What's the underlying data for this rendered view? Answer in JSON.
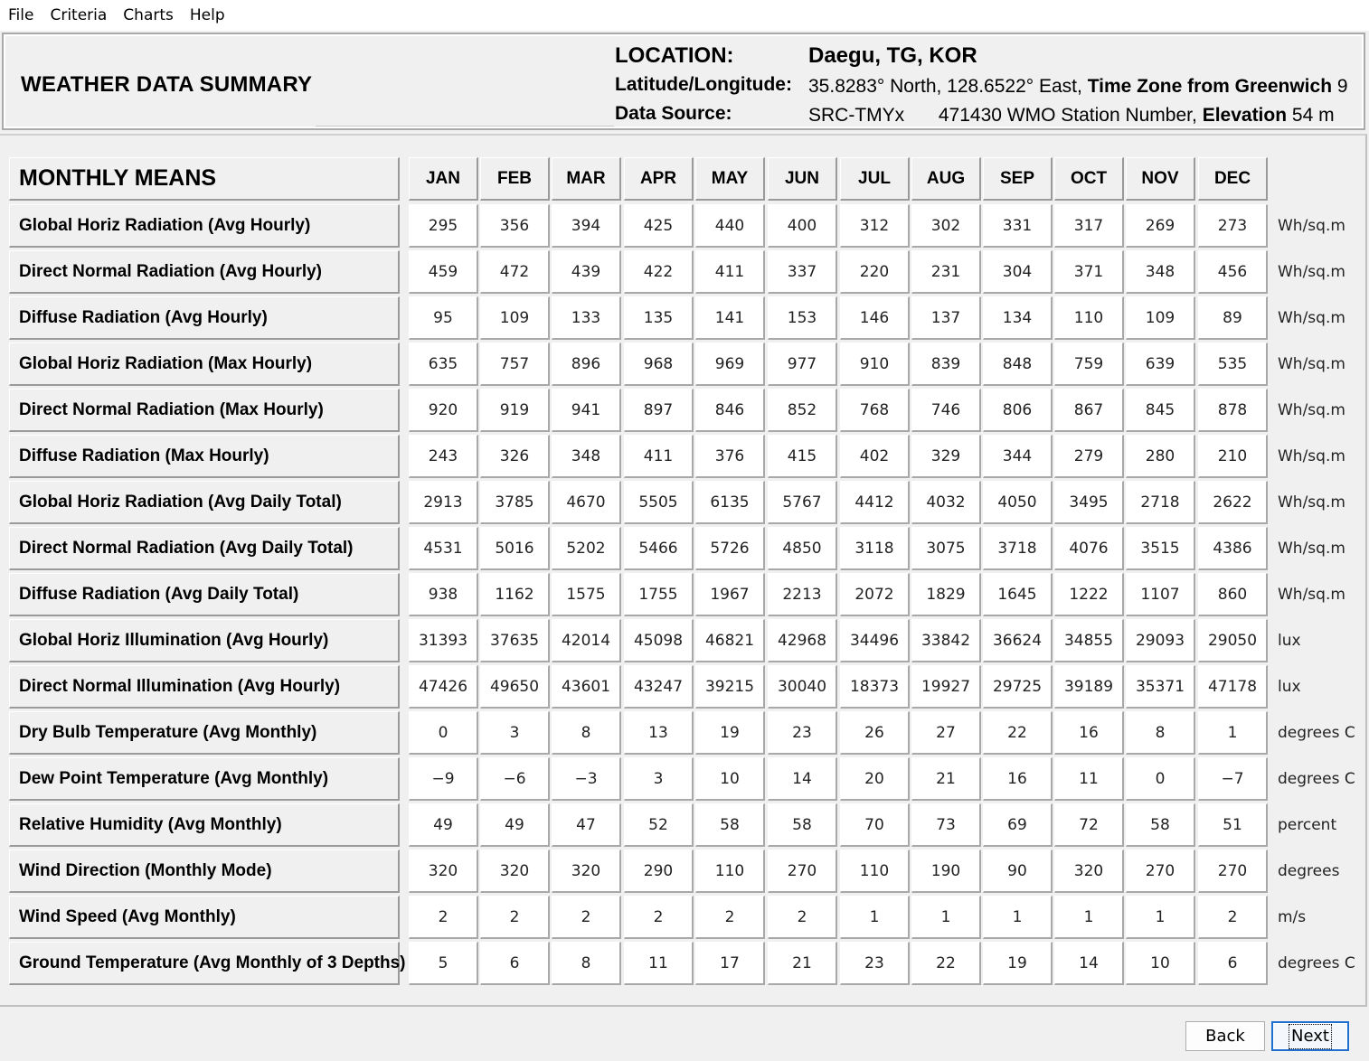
{
  "menu": [
    "File",
    "Criteria",
    "Charts",
    "Help"
  ],
  "header": {
    "title": "WEATHER DATA SUMMARY",
    "location_label": "LOCATION:",
    "location_value": "Daegu, TG, KOR",
    "latlon_label": "Latitude/Longitude:",
    "latlon_value": "35.8283° North, 128.6522° East,",
    "timezone_label": "Time Zone from Greenwich",
    "timezone_value": "9",
    "source_label": "Data Source:",
    "source_value": "SRC-TMYx",
    "station_value": "471430 WMO Station Number,",
    "elevation_label": "Elevation",
    "elevation_value": "54 m"
  },
  "table": {
    "title": "MONTHLY MEANS",
    "months": [
      "JAN",
      "FEB",
      "MAR",
      "APR",
      "MAY",
      "JUN",
      "JUL",
      "AUG",
      "SEP",
      "OCT",
      "NOV",
      "DEC"
    ],
    "rows": [
      {
        "label": "Global Horiz Radiation (Avg Hourly)",
        "unit": "Wh/sq.m",
        "values": [
          "295",
          "356",
          "394",
          "425",
          "440",
          "400",
          "312",
          "302",
          "331",
          "317",
          "269",
          "273"
        ]
      },
      {
        "label": "Direct Normal Radiation (Avg Hourly)",
        "unit": "Wh/sq.m",
        "values": [
          "459",
          "472",
          "439",
          "422",
          "411",
          "337",
          "220",
          "231",
          "304",
          "371",
          "348",
          "456"
        ]
      },
      {
        "label": "Diffuse Radiation (Avg Hourly)",
        "unit": "Wh/sq.m",
        "values": [
          "95",
          "109",
          "133",
          "135",
          "141",
          "153",
          "146",
          "137",
          "134",
          "110",
          "109",
          "89"
        ]
      },
      {
        "label": "Global Horiz Radiation (Max Hourly)",
        "unit": "Wh/sq.m",
        "values": [
          "635",
          "757",
          "896",
          "968",
          "969",
          "977",
          "910",
          "839",
          "848",
          "759",
          "639",
          "535"
        ]
      },
      {
        "label": "Direct Normal Radiation (Max Hourly)",
        "unit": "Wh/sq.m",
        "values": [
          "920",
          "919",
          "941",
          "897",
          "846",
          "852",
          "768",
          "746",
          "806",
          "867",
          "845",
          "878"
        ]
      },
      {
        "label": "Diffuse Radiation (Max Hourly)",
        "unit": "Wh/sq.m",
        "values": [
          "243",
          "326",
          "348",
          "411",
          "376",
          "415",
          "402",
          "329",
          "344",
          "279",
          "280",
          "210"
        ]
      },
      {
        "label": "Global Horiz Radiation (Avg Daily Total)",
        "unit": "Wh/sq.m",
        "values": [
          "2913",
          "3785",
          "4670",
          "5505",
          "6135",
          "5767",
          "4412",
          "4032",
          "4050",
          "3495",
          "2718",
          "2622"
        ]
      },
      {
        "label": "Direct Normal Radiation (Avg Daily Total)",
        "unit": "Wh/sq.m",
        "values": [
          "4531",
          "5016",
          "5202",
          "5466",
          "5726",
          "4850",
          "3118",
          "3075",
          "3718",
          "4076",
          "3515",
          "4386"
        ]
      },
      {
        "label": "Diffuse Radiation (Avg Daily Total)",
        "unit": "Wh/sq.m",
        "values": [
          "938",
          "1162",
          "1575",
          "1755",
          "1967",
          "2213",
          "2072",
          "1829",
          "1645",
          "1222",
          "1107",
          "860"
        ]
      },
      {
        "label": "Global Horiz Illumination (Avg Hourly)",
        "unit": "lux",
        "values": [
          "31393",
          "37635",
          "42014",
          "45098",
          "46821",
          "42968",
          "34496",
          "33842",
          "36624",
          "34855",
          "29093",
          "29050"
        ]
      },
      {
        "label": "Direct Normal Illumination (Avg Hourly)",
        "unit": "lux",
        "values": [
          "47426",
          "49650",
          "43601",
          "43247",
          "39215",
          "30040",
          "18373",
          "19927",
          "29725",
          "39189",
          "35371",
          "47178"
        ]
      },
      {
        "label": "Dry Bulb Temperature (Avg Monthly)",
        "unit": "degrees C",
        "values": [
          "0",
          "3",
          "8",
          "13",
          "19",
          "23",
          "26",
          "27",
          "22",
          "16",
          "8",
          "1"
        ]
      },
      {
        "label": "Dew Point Temperature (Avg Monthly)",
        "unit": "degrees C",
        "values": [
          "-9",
          "-6",
          "-3",
          "3",
          "10",
          "14",
          "20",
          "21",
          "16",
          "11",
          "0",
          "-7"
        ]
      },
      {
        "label": "Relative Humidity (Avg Monthly)",
        "unit": "percent",
        "values": [
          "49",
          "49",
          "47",
          "52",
          "58",
          "58",
          "70",
          "73",
          "69",
          "72",
          "58",
          "51"
        ]
      },
      {
        "label": "Wind Direction (Monthly Mode)",
        "unit": "degrees",
        "values": [
          "320",
          "320",
          "320",
          "290",
          "110",
          "270",
          "110",
          "190",
          "90",
          "320",
          "270",
          "270"
        ]
      },
      {
        "label": "Wind Speed (Avg Monthly)",
        "unit": "m/s",
        "values": [
          "2",
          "2",
          "2",
          "2",
          "2",
          "2",
          "1",
          "1",
          "1",
          "1",
          "1",
          "2"
        ]
      },
      {
        "label": "Ground Temperature (Avg Monthly of 3 Depths)",
        "unit": "degrees C",
        "values": [
          "5",
          "6",
          "8",
          "11",
          "17",
          "21",
          "23",
          "22",
          "19",
          "14",
          "10",
          "6"
        ]
      }
    ]
  },
  "buttons": {
    "back": "Back",
    "next": "Next"
  }
}
